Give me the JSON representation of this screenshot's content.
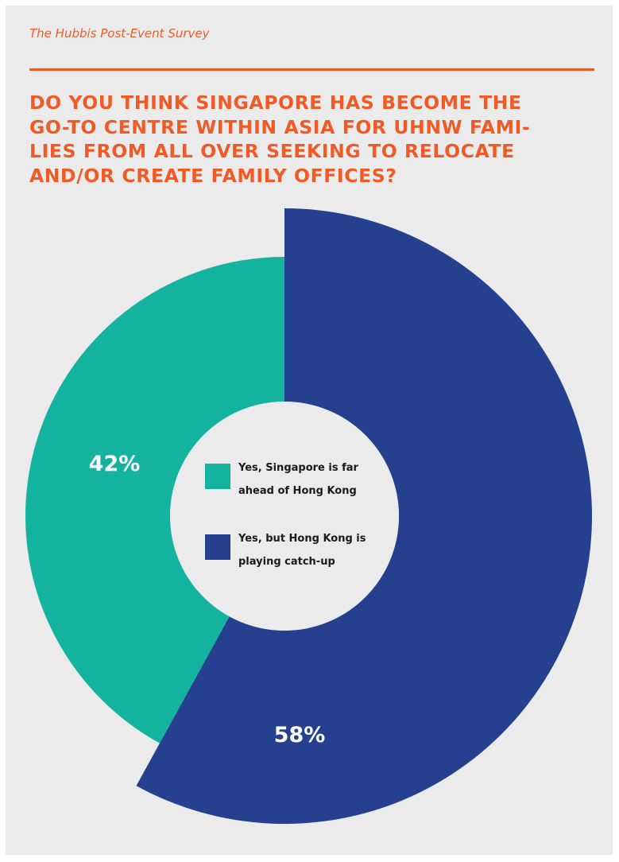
{
  "header": {
    "survey_label": "The Hubbis Post-Event Survey",
    "question_lines": [
      "Do you think Singapore has become the",
      "go-to centre within Asia for UHNW fami-",
      "lies from all over seeking to relocate",
      "and/or create family offices?"
    ]
  },
  "chart_data": {
    "type": "pie",
    "title": "Do you think Singapore has become the go-to centre within Asia for UHNW families from all over seeking to relocate and/or create family offices?",
    "legend_placement": "center",
    "slices": [
      {
        "label_lines": [
          "Yes, Singapore is far",
          "ahead of Hong Kong"
        ],
        "value": 42,
        "display": "42%",
        "color": "#14b3a0"
      },
      {
        "label_lines": [
          "Yes, but Hong Kong is",
          "playing catch-up"
        ],
        "value": 58,
        "display": "58%",
        "color": "#24408e"
      }
    ]
  }
}
